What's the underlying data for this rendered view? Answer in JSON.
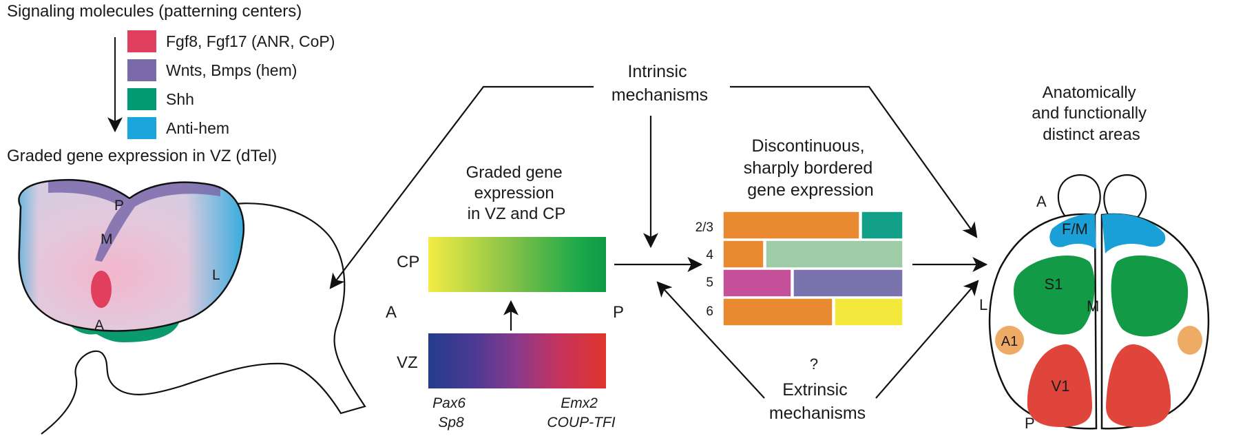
{
  "legend": {
    "heading": "Signaling molecules (patterning centers)",
    "items": [
      {
        "label": "Fgf8, Fgf17 (ANR, CoP)",
        "color": "#e0405e"
      },
      {
        "label": "Wnts, Bmps (hem)",
        "color": "#7a6aaa"
      },
      {
        "label": "Shh",
        "color": "#009a73"
      },
      {
        "label": "Anti-hem",
        "color": "#1aa6dc"
      }
    ]
  },
  "vz_panel": {
    "title": "Graded gene expression in VZ (dTel)",
    "labels": {
      "p": "P",
      "m": "M",
      "a": "A",
      "l": "L"
    }
  },
  "gradient_panel": {
    "title": [
      "Graded gene",
      "expression",
      "in VZ and CP"
    ],
    "cp": "CP",
    "vz": "VZ",
    "a": "A",
    "p": "P",
    "left_genes": [
      "Pax6",
      "Sp8"
    ],
    "right_genes": [
      "Emx2",
      "COUP-TFI"
    ]
  },
  "mechanisms": {
    "intrinsic": [
      "Intrinsic",
      "mechanisms"
    ],
    "extrinsic_q": "?",
    "extrinsic": [
      "Extrinsic",
      "mechanisms"
    ]
  },
  "layers_panel": {
    "title": [
      "Discontinuous,",
      "sharply bordered",
      "gene expression"
    ],
    "rows": [
      "2/3",
      "4",
      "5",
      "6"
    ]
  },
  "areas_panel": {
    "title": [
      "Anatomically",
      "and functionally",
      "distinct areas"
    ],
    "labels": {
      "a": "A",
      "fm": "F/M",
      "s1": "S1",
      "l": "L",
      "m": "M",
      "a1": "A1",
      "v1": "V1",
      "p": "P"
    }
  }
}
